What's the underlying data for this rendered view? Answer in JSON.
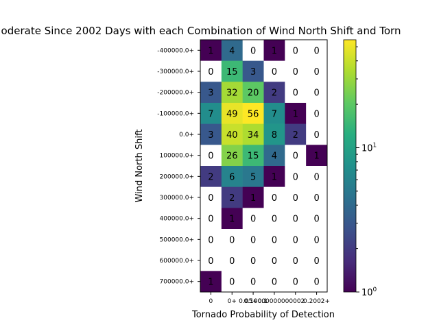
{
  "chart_data": {
    "type": "heatmap",
    "title": "oderate Since 2002 Days with each Combination of Wind North Shift and Torn",
    "xlabel": "Tornado Probability of Detection",
    "ylabel": "Wind North Shift",
    "x_categories": [
      "0",
      "0+",
      "0.05+",
      "0.1+",
      "0.1000000000...",
      "0.2002+"
    ],
    "x_tick_labels": [
      "0",
      "0+",
      "0.05+0.1",
      "0.10000000000002",
      "",
      "0.2002+"
    ],
    "y_categories": [
      "-400000.0+",
      "-300000.0+",
      "-200000.0+",
      "-100000.0+",
      "0.0+",
      "100000.0+",
      "200000.0+",
      "300000.0+",
      "400000.0+",
      "500000.0+",
      "600000.0+",
      "700000.0+"
    ],
    "values": [
      [
        1,
        4,
        0,
        1,
        0,
        0
      ],
      [
        0,
        15,
        3,
        0,
        0,
        0
      ],
      [
        3,
        32,
        20,
        2,
        0,
        0
      ],
      [
        7,
        49,
        56,
        7,
        1,
        0
      ],
      [
        3,
        40,
        34,
        8,
        2,
        0
      ],
      [
        0,
        26,
        15,
        4,
        0,
        1
      ],
      [
        2,
        6,
        5,
        1,
        0,
        0
      ],
      [
        0,
        2,
        1,
        0,
        0,
        0
      ],
      [
        0,
        1,
        0,
        0,
        0,
        0
      ],
      [
        0,
        0,
        0,
        0,
        0,
        0
      ],
      [
        0,
        0,
        0,
        0,
        0,
        0
      ],
      [
        1,
        0,
        0,
        0,
        0,
        0
      ]
    ],
    "colorbar": {
      "scale": "log",
      "colormap": "viridis",
      "range": [
        1,
        56
      ],
      "tick_labels": [
        "10^0",
        "10^1"
      ]
    },
    "zero_color": "#ffffff"
  }
}
